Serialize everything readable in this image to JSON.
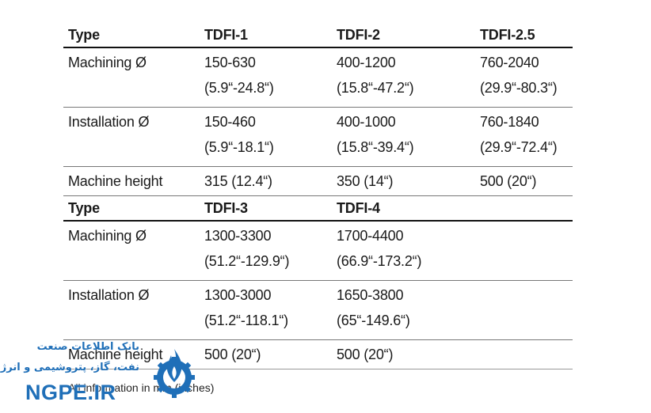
{
  "table1": {
    "headers": [
      "Type",
      "TDFI-1",
      "TDFI-2",
      "TDFI-2.5"
    ],
    "rows": [
      {
        "label": "Machining Ø",
        "cells": [
          [
            "150-630",
            "(5.9“-24.8“)"
          ],
          [
            "400-1200",
            "(15.8“-47.2“)"
          ],
          [
            "760-2040",
            "(29.9“-80.3“)"
          ]
        ]
      },
      {
        "label": "Installation Ø",
        "cells": [
          [
            "150-460",
            "(5.9“-18.1“)"
          ],
          [
            "400-1000",
            "(15.8“-39.4“)"
          ],
          [
            "760-1840",
            "(29.9“-72.4“)"
          ]
        ]
      },
      {
        "label": "Machine height",
        "cells": [
          [
            "315 (12.4“)"
          ],
          [
            "350 (14“)"
          ],
          [
            "500 (20“)"
          ]
        ]
      }
    ]
  },
  "table2": {
    "headers": [
      "Type",
      "TDFI-3",
      "TDFI-4",
      ""
    ],
    "rows": [
      {
        "label": "Machining Ø",
        "cells": [
          [
            "1300-3300",
            "(51.2“-129.9“)"
          ],
          [
            "1700-4400",
            "(66.9“-173.2“)"
          ]
        ]
      },
      {
        "label": "Installation Ø",
        "cells": [
          [
            "1300-3000",
            "(51.2“-118.1“)"
          ],
          [
            "1650-3800",
            "(65“-149.6“)"
          ]
        ]
      },
      {
        "label": "Machine height",
        "cells": [
          [
            "500 (20“)"
          ],
          [
            "500 (20“)"
          ]
        ]
      }
    ]
  },
  "footnote": "All information in mm (inches)",
  "watermark": {
    "line1": "بانک اطلاعات صنعت",
    "line2": "نفت، گاز، پتروشیمی و انرژی",
    "brand": "NGPE.IR",
    "logo_icon": "flame-gear-icon",
    "color": "#1f6fb8"
  }
}
